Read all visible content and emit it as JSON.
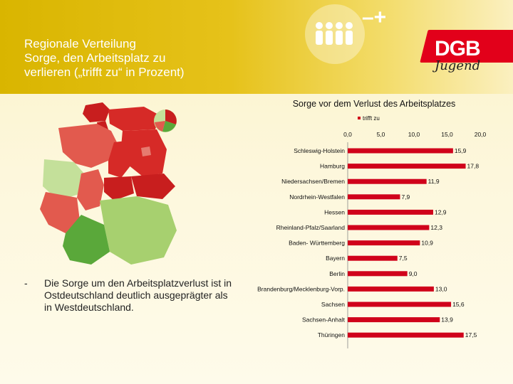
{
  "slide": {
    "title_lines": [
      "Regionale Verteilung",
      "Sorge, den Arbeitsplatz zu",
      "verlieren („trifft zu“ in Prozent)"
    ],
    "bullet_dash": "-",
    "bullet_text": "Die Sorge um den Arbeitsplatzverlust ist in Ostdeutschland deutlich ausgeprägter als in Westdeutschland.",
    "brand": "DGB",
    "brand_sub": "Jugend",
    "icon_symbols": "–+"
  },
  "colors": {
    "bar": "#d0021b",
    "map_dark_red": "#c81e1e",
    "map_light_red": "#e9605a",
    "map_green_light": "#bfdc8e",
    "map_green_mid": "#7fbe55",
    "map_green_dark": "#3f9a34",
    "brand_red": "#e2001a"
  },
  "chart_data": {
    "type": "bar",
    "orientation": "horizontal",
    "title": "Sorge vor dem Verlust des Arbeitsplatzes",
    "legend": [
      "trifft zu"
    ],
    "legend_position": "top",
    "x_ticks": [
      "0,0",
      "5,0",
      "10,0",
      "15,0",
      "20,0"
    ],
    "xlim": [
      0,
      20
    ],
    "grid": false,
    "categories": [
      "Schleswig-Holstein",
      "Hamburg",
      "Niedersachsen/Bremen",
      "Nordrhein-Westfalen",
      "Hessen",
      "Rheinland-Pfalz/Saarland",
      "Baden- Württemberg",
      "Bayern",
      "Berlin",
      "Brandenburg/Mecklenburg-Vorp.",
      "Sachsen",
      "Sachsen-Anhalt",
      "Thüringen"
    ],
    "series": [
      {
        "name": "trifft zu",
        "values": [
          15.9,
          17.8,
          11.9,
          7.9,
          12.9,
          12.3,
          10.9,
          7.5,
          9.0,
          13.0,
          15.6,
          13.9,
          17.5
        ],
        "labels": [
          "15,9",
          "17,8",
          "11,9",
          "7,9",
          "12,9",
          "12,3",
          "10,9",
          "7,5",
          "9,0",
          "13,0",
          "15,6",
          "13,9",
          "17,5"
        ]
      }
    ]
  }
}
